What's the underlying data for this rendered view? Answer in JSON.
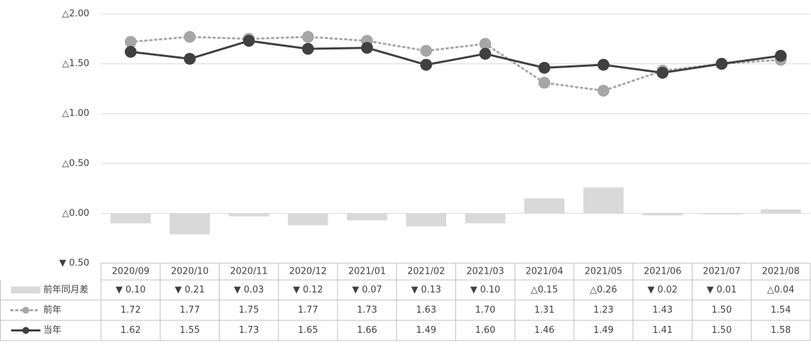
{
  "chart_data": {
    "type": "combo",
    "categories": [
      "2020/09",
      "2020/10",
      "2020/11",
      "2020/12",
      "2021/01",
      "2021/02",
      "2021/03",
      "2021/04",
      "2021/05",
      "2021/06",
      "2021/07",
      "2021/08"
    ],
    "ylim": [
      -0.5,
      2
    ],
    "yticks": [
      {
        "value": -0.5,
        "label": "▼ 0.50"
      },
      {
        "value": 0,
        "label": "△0.00"
      },
      {
        "value": 0.5,
        "label": "△0.50"
      },
      {
        "value": 1,
        "label": "△1.00"
      },
      {
        "value": 1.5,
        "label": "△1.50"
      },
      {
        "value": 2,
        "label": "△2.00"
      }
    ],
    "grid": true,
    "series": [
      {
        "name": "前年同月差",
        "type": "bar",
        "color": "#d9d9d9",
        "values": [
          -0.1,
          -0.21,
          -0.03,
          -0.12,
          -0.07,
          -0.13,
          -0.1,
          0.15,
          0.26,
          -0.02,
          -0.01,
          0.04
        ],
        "value_labels": [
          "▼ 0.10",
          "▼ 0.21",
          "▼ 0.03",
          "▼ 0.12",
          "▼ 0.07",
          "▼ 0.13",
          "▼ 0.10",
          "△0.15",
          "△0.26",
          "▼ 0.02",
          "▼ 0.01",
          "△0.04"
        ]
      },
      {
        "name": "前年",
        "type": "line",
        "line_style": "dotted",
        "color": "#a6a6a6",
        "values": [
          1.72,
          1.77,
          1.75,
          1.77,
          1.73,
          1.63,
          1.7,
          1.31,
          1.23,
          1.43,
          1.5,
          1.54
        ],
        "value_labels": [
          "1.72",
          "1.77",
          "1.75",
          "1.77",
          "1.73",
          "1.63",
          "1.70",
          "1.31",
          "1.23",
          "1.43",
          "1.50",
          "1.54"
        ]
      },
      {
        "name": "当年",
        "type": "line",
        "line_style": "solid",
        "color": "#404040",
        "values": [
          1.62,
          1.55,
          1.73,
          1.65,
          1.66,
          1.49,
          1.6,
          1.46,
          1.49,
          1.41,
          1.5,
          1.58
        ],
        "value_labels": [
          "1.62",
          "1.55",
          "1.73",
          "1.65",
          "1.66",
          "1.49",
          "1.60",
          "1.46",
          "1.49",
          "1.41",
          "1.50",
          "1.58"
        ]
      }
    ]
  }
}
